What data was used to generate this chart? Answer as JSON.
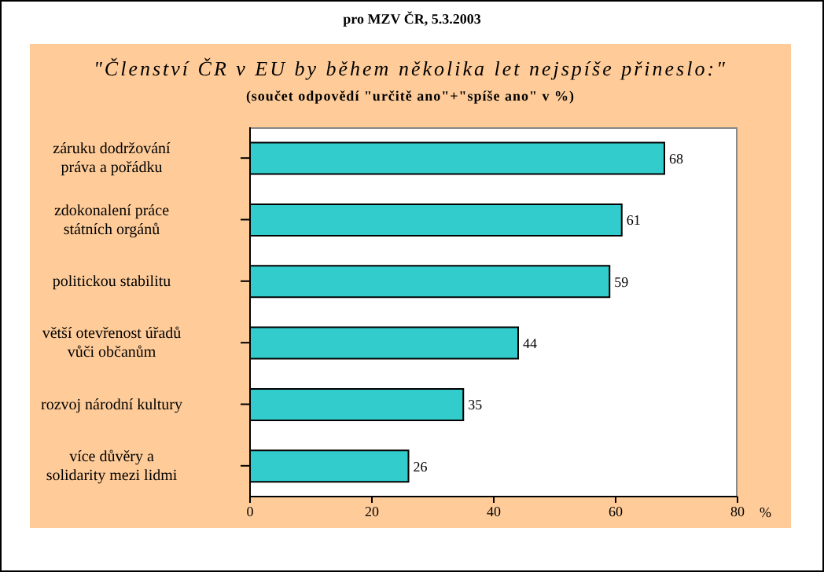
{
  "chart_data": {
    "type": "bar",
    "orientation": "horizontal",
    "title": "\"Členství ČR v EU by během několika let nejspíše přineslo:\"",
    "subtitle": "(součet odpovědí \"určitě ano\"+\"spíše ano\" v %)",
    "annotations": [
      "pro MZV ČR, 5.3.2003"
    ],
    "categories": [
      "záruku dodržování práva a pořádku",
      "zdokonalení práce státních orgánů",
      "politickou stabilitu",
      "větší otevřenost úřadů vůči občanům",
      "rozvoj národní kultury",
      "více důvěry a solidarity mezi lidmi"
    ],
    "values": [
      68,
      61,
      59,
      44,
      35,
      26
    ],
    "color": "#33cccc",
    "xlim": [
      0,
      80
    ],
    "xticks": [
      0,
      20,
      40,
      60,
      80
    ],
    "xlabel": "%",
    "data_labels": true
  }
}
